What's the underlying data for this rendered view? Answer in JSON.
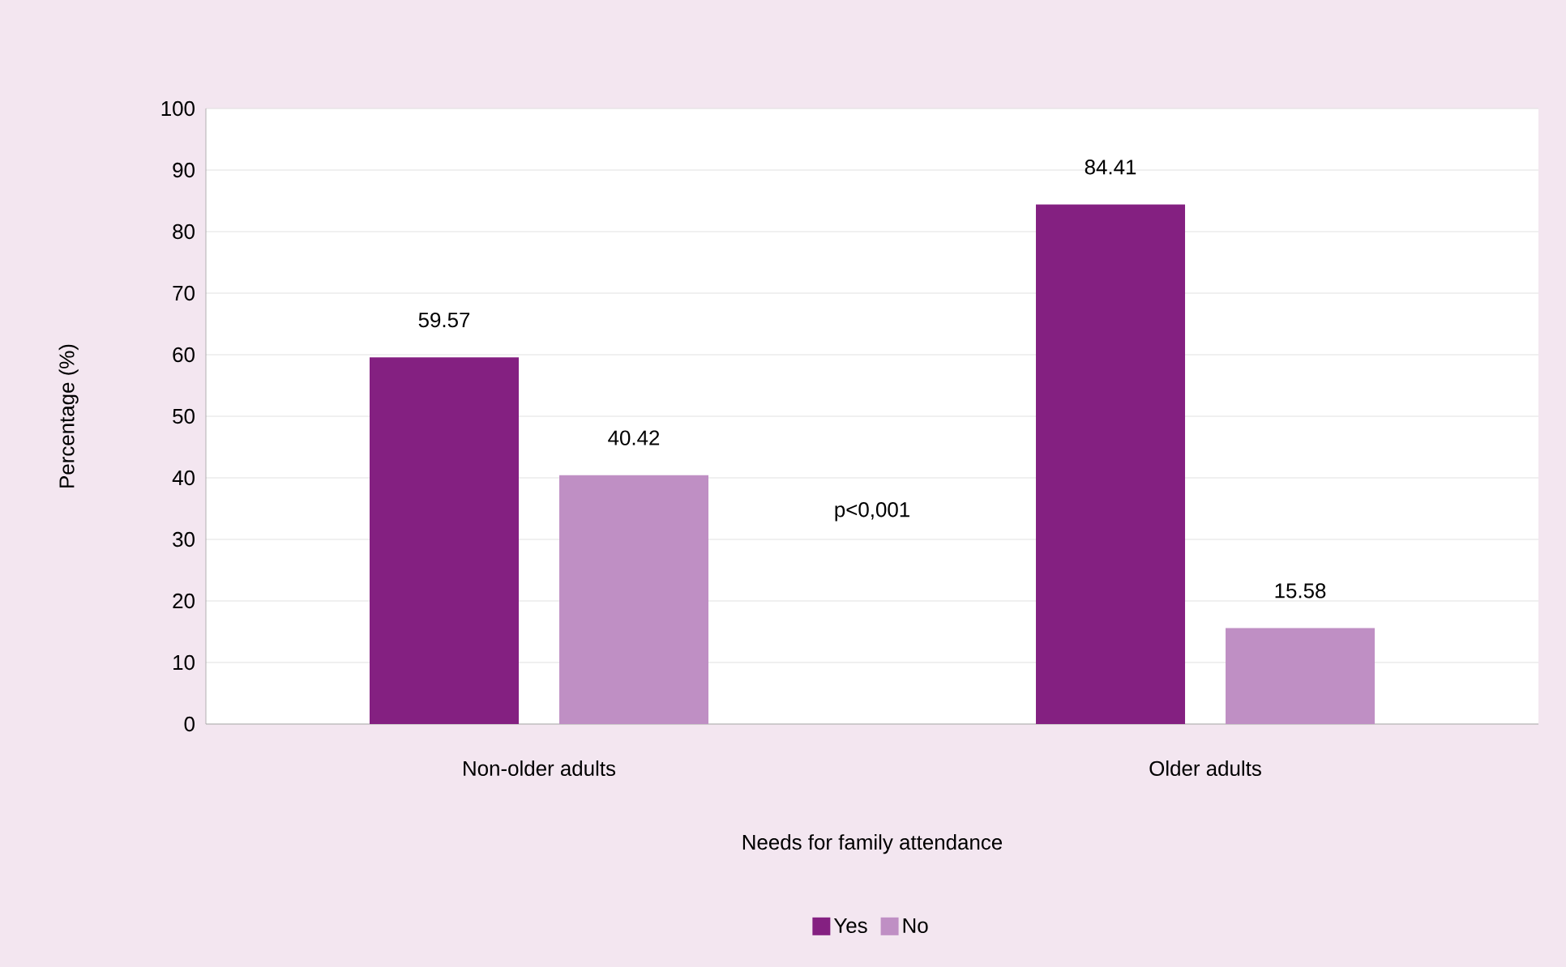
{
  "chart_data": {
    "type": "bar",
    "xlabel": "Needs for family attendance",
    "ylabel": "Percentage (%)",
    "categories": [
      "Non-older adults",
      "Older adults"
    ],
    "series": [
      {
        "name": "Yes",
        "color": "#842081",
        "values": [
          59.57,
          84.41
        ]
      },
      {
        "name": "No",
        "color": "#bf8fc4",
        "values": [
          40.42,
          15.58
        ]
      }
    ],
    "ylim": [
      0,
      100
    ],
    "yticks": [
      0,
      10,
      20,
      30,
      40,
      50,
      60,
      70,
      80,
      90,
      100
    ],
    "grid": "y",
    "legend": "bottom",
    "data_labels": true,
    "annotations": [
      "p<0,001"
    ]
  }
}
